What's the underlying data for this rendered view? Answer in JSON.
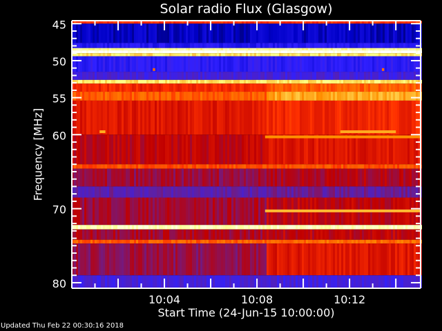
{
  "chart_data": {
    "type": "heatmap",
    "title": "Solar radio Flux (Glasgow)",
    "xlabel": "Start Time (24-Jun-15 10:00:00)",
    "ylabel": "Frequency [MHz]",
    "x_unit": "minutes after 10:00",
    "xlim": [
      0,
      15.07
    ],
    "ylim": [
      80.75,
      44.6
    ],
    "x_ticks": [
      {
        "value": 4,
        "label": "10:04"
      },
      {
        "value": 8,
        "label": "10:08"
      },
      {
        "value": 12,
        "label": "10:12"
      }
    ],
    "y_ticks": [
      45,
      50,
      55,
      60,
      70,
      80
    ],
    "colormap": [
      "#000000",
      "#0000c8",
      "#3020ff",
      "#6020a0",
      "#c00000",
      "#ff3000",
      "#ff9000",
      "#ffff80",
      "#ffffff"
    ],
    "change_time": 8.35,
    "bands": [
      {
        "f0": 44.6,
        "f1": 45.0,
        "before": 0.62,
        "after": 0.62
      },
      {
        "f0": 45.0,
        "f1": 47.6,
        "before": 0.13,
        "after": 0.13
      },
      {
        "f0": 47.6,
        "f1": 48.3,
        "before": 0.22,
        "after": 0.22
      },
      {
        "f0": 48.3,
        "f1": 48.6,
        "before": 0.9,
        "after": 0.9
      },
      {
        "f0": 48.6,
        "f1": 49.0,
        "before": 1.0,
        "after": 1.0
      },
      {
        "f0": 49.0,
        "f1": 49.4,
        "before": 0.85,
        "after": 0.85
      },
      {
        "f0": 49.4,
        "f1": 51.5,
        "before": 0.24,
        "after": 0.24
      },
      {
        "f0": 51.5,
        "f1": 52.6,
        "before": 0.3,
        "after": 0.3
      },
      {
        "f0": 52.6,
        "f1": 53.1,
        "before": 0.85,
        "after": 0.85
      },
      {
        "f0": 53.1,
        "f1": 54.2,
        "before": 0.6,
        "after": 0.68
      },
      {
        "f0": 54.2,
        "f1": 55.4,
        "before": 0.68,
        "after": 0.78
      },
      {
        "f0": 55.4,
        "f1": 60.0,
        "before": 0.56,
        "after": 0.6
      },
      {
        "f0": 60.0,
        "f1": 64.0,
        "before": 0.5,
        "after": 0.56
      },
      {
        "f0": 64.0,
        "f1": 64.6,
        "before": 0.66,
        "after": 0.66
      },
      {
        "f0": 64.6,
        "f1": 67.0,
        "before": 0.45,
        "after": 0.48
      },
      {
        "f0": 67.0,
        "f1": 68.5,
        "before": 0.36,
        "after": 0.38
      },
      {
        "f0": 68.5,
        "f1": 72.2,
        "before": 0.46,
        "after": 0.5
      },
      {
        "f0": 72.2,
        "f1": 72.8,
        "before": 0.93,
        "after": 0.93
      },
      {
        "f0": 72.8,
        "f1": 74.2,
        "before": 0.47,
        "after": 0.5
      },
      {
        "f0": 74.2,
        "f1": 74.7,
        "before": 0.68,
        "after": 0.7
      },
      {
        "f0": 74.7,
        "f1": 79.0,
        "before": 0.44,
        "after": 0.56
      },
      {
        "f0": 79.0,
        "f1": 80.75,
        "before": 0.3,
        "after": 0.3
      }
    ],
    "features": [
      {
        "f": 60.3,
        "t0": 8.35,
        "t1": 15.07,
        "level": 0.75
      },
      {
        "f": 70.3,
        "t0": 8.35,
        "t1": 15.07,
        "level": 0.8
      },
      {
        "f": 59.6,
        "t0": 11.6,
        "t1": 14.0,
        "level": 0.78
      },
      {
        "f": 59.6,
        "t0": 1.2,
        "t1": 1.45,
        "level": 0.78
      },
      {
        "f": 51.2,
        "t0": 3.5,
        "t1": 3.6,
        "level": 0.7
      },
      {
        "f": 51.2,
        "t0": 13.4,
        "t1": 13.5,
        "level": 0.7
      }
    ]
  },
  "footer": {
    "updated": "Updated Thu Feb 22 00:30:16 2018"
  }
}
